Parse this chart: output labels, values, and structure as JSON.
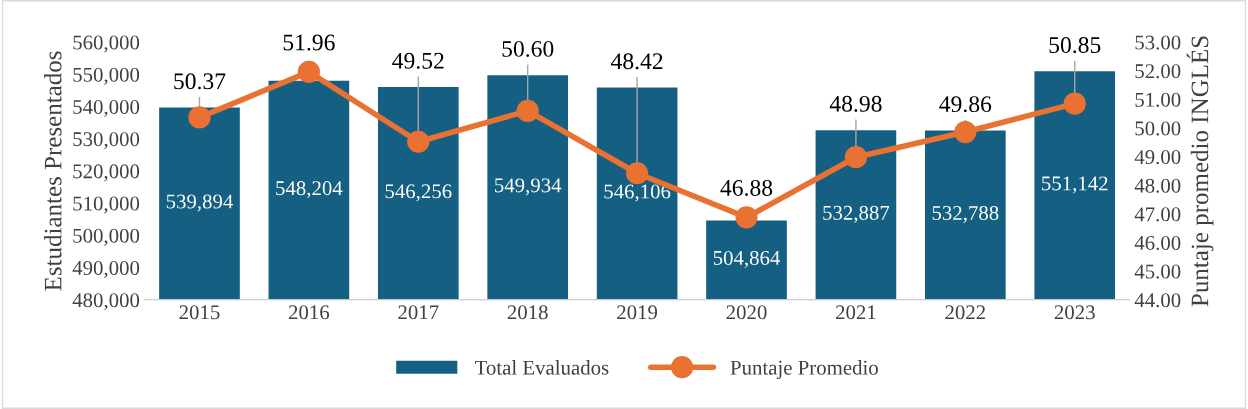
{
  "chart_data": {
    "type": "bar",
    "categories": [
      "2015",
      "2016",
      "2017",
      "2018",
      "2019",
      "2020",
      "2021",
      "2022",
      "2023"
    ],
    "ylabel": "Estudiantes Presentados",
    "y2label": "Puntaje promedio INGLÉS",
    "series": [
      {
        "name": "Total Evaluados",
        "color": "#156082",
        "values": [
          539894,
          548204,
          546256,
          549934,
          546106,
          504864,
          532887,
          532788,
          551142
        ],
        "value_labels": [
          "539,894",
          "548,204",
          "546,256",
          "549,934",
          "546,106",
          "504,864",
          "532,887",
          "532,788",
          "551,142"
        ]
      },
      {
        "name": "Puntaje Promedio",
        "type": "line",
        "axis": "y2",
        "color": "#e97132",
        "marker": "circle",
        "values": [
          50.37,
          51.96,
          49.52,
          50.6,
          48.42,
          46.88,
          48.98,
          49.86,
          50.85
        ],
        "value_labels": [
          "50.37",
          "51.96",
          "49.52",
          "50.60",
          "48.42",
          "46.88",
          "48.98",
          "49.86",
          "50.85"
        ]
      }
    ],
    "ylim": [
      480000,
      560000
    ],
    "yticks": [
      {
        "value": 480000,
        "label": "480,000"
      },
      {
        "value": 490000,
        "label": "490,000"
      },
      {
        "value": 500000,
        "label": "500,000"
      },
      {
        "value": 510000,
        "label": "510,000"
      },
      {
        "value": 520000,
        "label": "520,000"
      },
      {
        "value": 530000,
        "label": "530,000"
      },
      {
        "value": 540000,
        "label": "540,000"
      },
      {
        "value": 550000,
        "label": "550,000"
      },
      {
        "value": 560000,
        "label": "560,000"
      }
    ],
    "y2lim": [
      44,
      53
    ],
    "y2ticks": [
      {
        "value": 44,
        "label": "44.00"
      },
      {
        "value": 45,
        "label": "45.00"
      },
      {
        "value": 46,
        "label": "46.00"
      },
      {
        "value": 47,
        "label": "47.00"
      },
      {
        "value": 48,
        "label": "48.00"
      },
      {
        "value": 49,
        "label": "49.00"
      },
      {
        "value": 50,
        "label": "50.00"
      },
      {
        "value": 51,
        "label": "51.00"
      },
      {
        "value": 52,
        "label": "52.00"
      },
      {
        "value": 53,
        "label": "53.00"
      }
    ],
    "grid": false,
    "legend": "bottom"
  }
}
